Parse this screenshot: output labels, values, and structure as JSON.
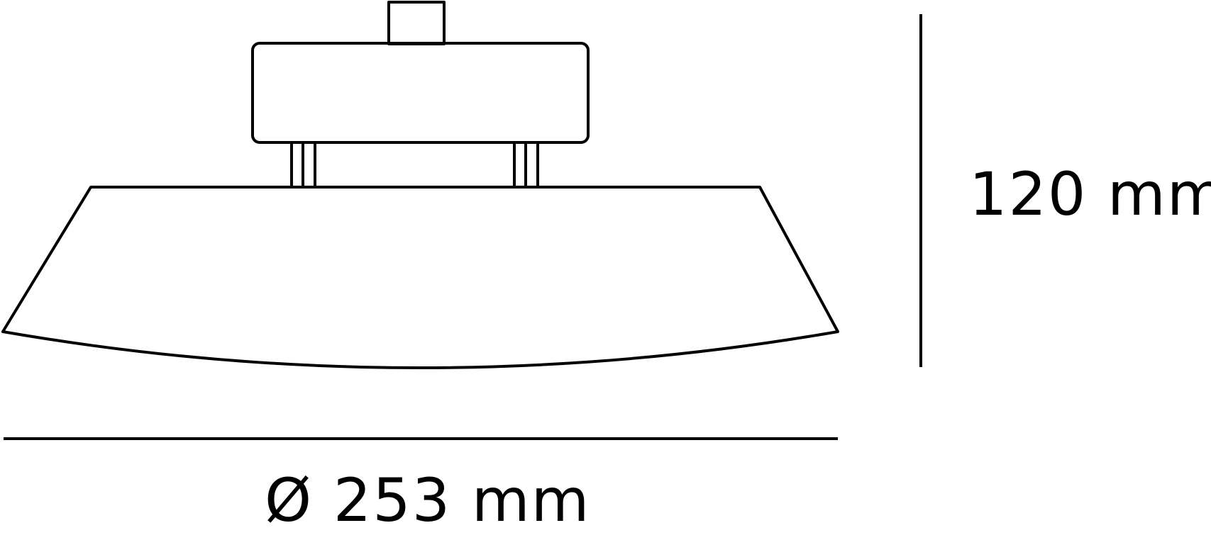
{
  "dimensions": {
    "height": "120 mm",
    "diameter": "Ø 253 mm"
  },
  "colors": {
    "stroke": "#000000",
    "background": "#ffffff"
  }
}
